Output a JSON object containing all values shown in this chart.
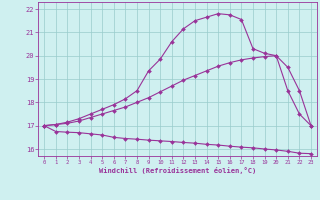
{
  "line1_y": [
    17.0,
    16.75,
    16.72,
    16.7,
    16.65,
    16.6,
    16.5,
    16.45,
    16.42,
    16.38,
    16.35,
    16.32,
    16.28,
    16.25,
    16.2,
    16.17,
    16.12,
    16.08,
    16.05,
    16.0,
    15.96,
    15.9,
    15.82,
    15.8
  ],
  "line2_y": [
    17.0,
    17.05,
    17.1,
    17.2,
    17.35,
    17.5,
    17.65,
    17.8,
    18.0,
    18.2,
    18.45,
    18.7,
    18.95,
    19.15,
    19.35,
    19.55,
    19.7,
    19.82,
    19.9,
    19.96,
    20.0,
    19.5,
    18.5,
    17.0
  ],
  "line3_y": [
    17.0,
    17.05,
    17.15,
    17.3,
    17.5,
    17.7,
    17.9,
    18.15,
    18.5,
    19.35,
    19.85,
    20.6,
    21.15,
    21.5,
    21.65,
    21.8,
    21.75,
    21.55,
    20.3,
    20.1,
    20.0,
    18.5,
    17.5,
    17.0
  ],
  "x": [
    0,
    1,
    2,
    3,
    4,
    5,
    6,
    7,
    8,
    9,
    10,
    11,
    12,
    13,
    14,
    15,
    16,
    17,
    18,
    19,
    20,
    21,
    22,
    23
  ],
  "bg_color": "#cff0f0",
  "line_color": "#993399",
  "grid_color": "#99cccc",
  "xlabel": "Windchill (Refroidissement éolien,°C)",
  "ylim": [
    15.7,
    22.3
  ],
  "xlim": [
    -0.5,
    23.5
  ],
  "yticks": [
    16,
    17,
    18,
    19,
    20,
    21,
    22
  ],
  "xticks": [
    0,
    1,
    2,
    3,
    4,
    5,
    6,
    7,
    8,
    9,
    10,
    11,
    12,
    13,
    14,
    15,
    16,
    17,
    18,
    19,
    20,
    21,
    22,
    23
  ],
  "marker": "D",
  "markersize": 2.0,
  "linewidth": 0.8
}
